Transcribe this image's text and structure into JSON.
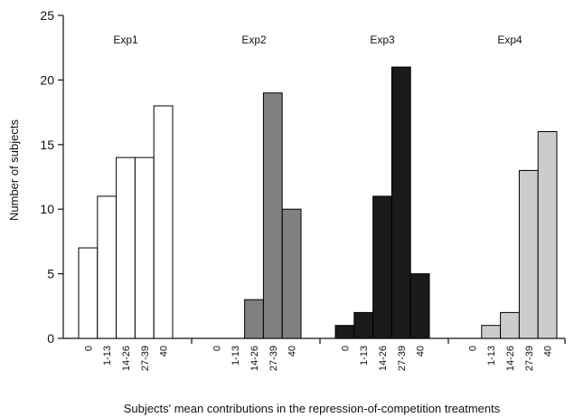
{
  "chart_data": {
    "type": "bar",
    "xlabel": "Subjects' mean contributions in the repression-of-competition treatments",
    "ylabel": "Number of subjects",
    "ylim": [
      0,
      25
    ],
    "yticks": [
      "0",
      "5",
      "10",
      "15",
      "20",
      "25"
    ],
    "categories": [
      "0",
      "1-13",
      "14-26",
      "27-39",
      "40"
    ],
    "grid": false,
    "panels": [
      {
        "label": "Exp1",
        "color": "#ffffff",
        "values": [
          7,
          11,
          14,
          14,
          18
        ]
      },
      {
        "label": "Exp2",
        "color": "#808080",
        "values": [
          0,
          0,
          3,
          19,
          10
        ]
      },
      {
        "label": "Exp3",
        "color": "#1a1a1a",
        "values": [
          1,
          2,
          11,
          21,
          5
        ]
      },
      {
        "label": "Exp4",
        "color": "#cccccc",
        "values": [
          0,
          1,
          2,
          13,
          16
        ]
      }
    ]
  }
}
